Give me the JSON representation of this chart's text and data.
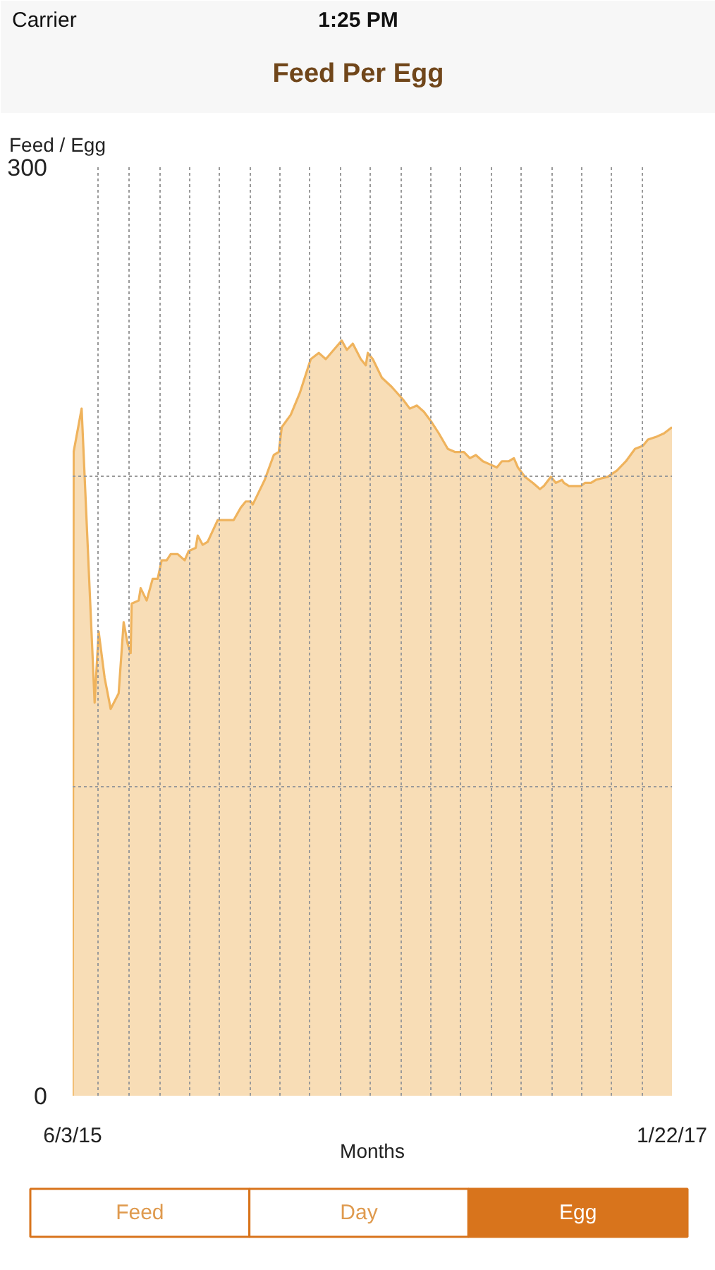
{
  "chart_data": {
    "type": "area",
    "title": "Feed Per Egg",
    "xlabel": "Months",
    "ylabel": "Feed / Egg",
    "x": [
      "2015-06-03",
      "2015-06-04",
      "2015-06-12",
      "2015-06-25",
      "2015-06-29",
      "2015-07-05",
      "2015-07-11",
      "2015-07-19",
      "2015-07-24",
      "2015-07-28",
      "2015-07-31",
      "2015-08-01",
      "2015-08-08",
      "2015-08-10",
      "2015-08-16",
      "2015-08-22",
      "2015-08-27",
      "2015-08-31",
      "2015-09-05",
      "2015-09-09",
      "2015-09-16",
      "2015-09-23",
      "2015-09-27",
      "2015-10-04",
      "2015-10-06",
      "2015-10-11",
      "2015-10-16",
      "2015-10-26",
      "2015-11-11",
      "2015-11-18",
      "2015-11-23",
      "2015-11-28",
      "2015-11-30",
      "2015-12-09",
      "2015-12-12",
      "2015-12-21",
      "2015-12-26",
      "2015-12-29",
      "2016-01-07",
      "2016-01-16",
      "2016-01-21",
      "2016-01-27",
      "2016-02-04",
      "2016-02-11",
      "2016-02-19",
      "2016-02-27",
      "2016-03-03",
      "2016-03-09",
      "2016-03-17",
      "2016-03-22",
      "2016-03-24",
      "2016-03-29",
      "2016-04-07",
      "2016-04-17",
      "2016-04-28",
      "2016-05-05",
      "2016-05-12",
      "2016-05-19",
      "2016-05-26",
      "2016-06-03",
      "2016-06-12",
      "2016-06-19",
      "2016-06-28",
      "2016-07-04",
      "2016-07-10",
      "2016-07-17",
      "2016-07-24",
      "2016-07-31",
      "2016-08-05",
      "2016-08-12",
      "2016-08-17",
      "2016-08-21",
      "2016-08-28",
      "2016-09-05",
      "2016-09-12",
      "2016-09-16",
      "2016-09-23",
      "2016-09-28",
      "2016-10-04",
      "2016-10-06",
      "2016-10-11",
      "2016-10-23",
      "2016-10-27",
      "2016-11-02",
      "2016-11-07",
      "2016-11-19",
      "2016-11-28",
      "2016-12-07",
      "2016-12-16",
      "2016-12-24",
      "2016-12-29",
      "2017-01-07",
      "2017-01-14",
      "2017-01-22"
    ],
    "series": [
      {
        "color": "#efb35d",
        "values": [
          0,
          208,
          222,
          127,
          150,
          135,
          125,
          130,
          153,
          146,
          143,
          159,
          160,
          164,
          160,
          167,
          167,
          173,
          173,
          175,
          175,
          173,
          176,
          177,
          181,
          178,
          179,
          186,
          186,
          190,
          192,
          192,
          191,
          197,
          199,
          207,
          208,
          216,
          220,
          227,
          232,
          238,
          240,
          238,
          241,
          244,
          241,
          243,
          238,
          236,
          240,
          238,
          232,
          229,
          225,
          222,
          223,
          221,
          218,
          214,
          209,
          208,
          208,
          206,
          207,
          205,
          204,
          203,
          205,
          205,
          206,
          203,
          200,
          198,
          196,
          197,
          200,
          198,
          199,
          198,
          197,
          197,
          198,
          198,
          199,
          200,
          202,
          205,
          209,
          210,
          212,
          213,
          214,
          216
        ]
      }
    ],
    "xlim": [
      "2015-06-03",
      "2017-01-22"
    ],
    "xticks": [
      {
        "value": "2015-06-03",
        "label": "6/3/15"
      },
      {
        "value": "2015-06-29",
        "label": null
      },
      {
        "value": "2015-07-29",
        "label": null
      },
      {
        "value": "2015-08-29",
        "label": null
      },
      {
        "value": "2015-09-28",
        "label": null
      },
      {
        "value": "2015-10-28",
        "label": null
      },
      {
        "value": "2015-11-27",
        "label": null
      },
      {
        "value": "2015-12-27",
        "label": null
      },
      {
        "value": "2016-01-26",
        "label": null
      },
      {
        "value": "2016-02-26",
        "label": null
      },
      {
        "value": "2016-03-27",
        "label": null
      },
      {
        "value": "2016-04-26",
        "label": null
      },
      {
        "value": "2016-05-26",
        "label": null
      },
      {
        "value": "2016-06-25",
        "label": null
      },
      {
        "value": "2016-07-25",
        "label": null
      },
      {
        "value": "2016-08-24",
        "label": null
      },
      {
        "value": "2016-09-24",
        "label": null
      },
      {
        "value": "2016-10-24",
        "label": null
      },
      {
        "value": "2016-11-23",
        "label": null
      },
      {
        "value": "2016-12-23",
        "label": null
      },
      {
        "value": "2017-01-22",
        "label": "1/22/17"
      }
    ],
    "ylim": [
      0,
      300
    ],
    "yticks": [
      0,
      {
        "value": 100,
        "label": null
      },
      {
        "value": 200,
        "label": null
      },
      300
    ],
    "grid": true,
    "annotations": [
      "Carrier",
      "1:25 PM",
      "Feed",
      "Day",
      "Egg"
    ]
  }
}
